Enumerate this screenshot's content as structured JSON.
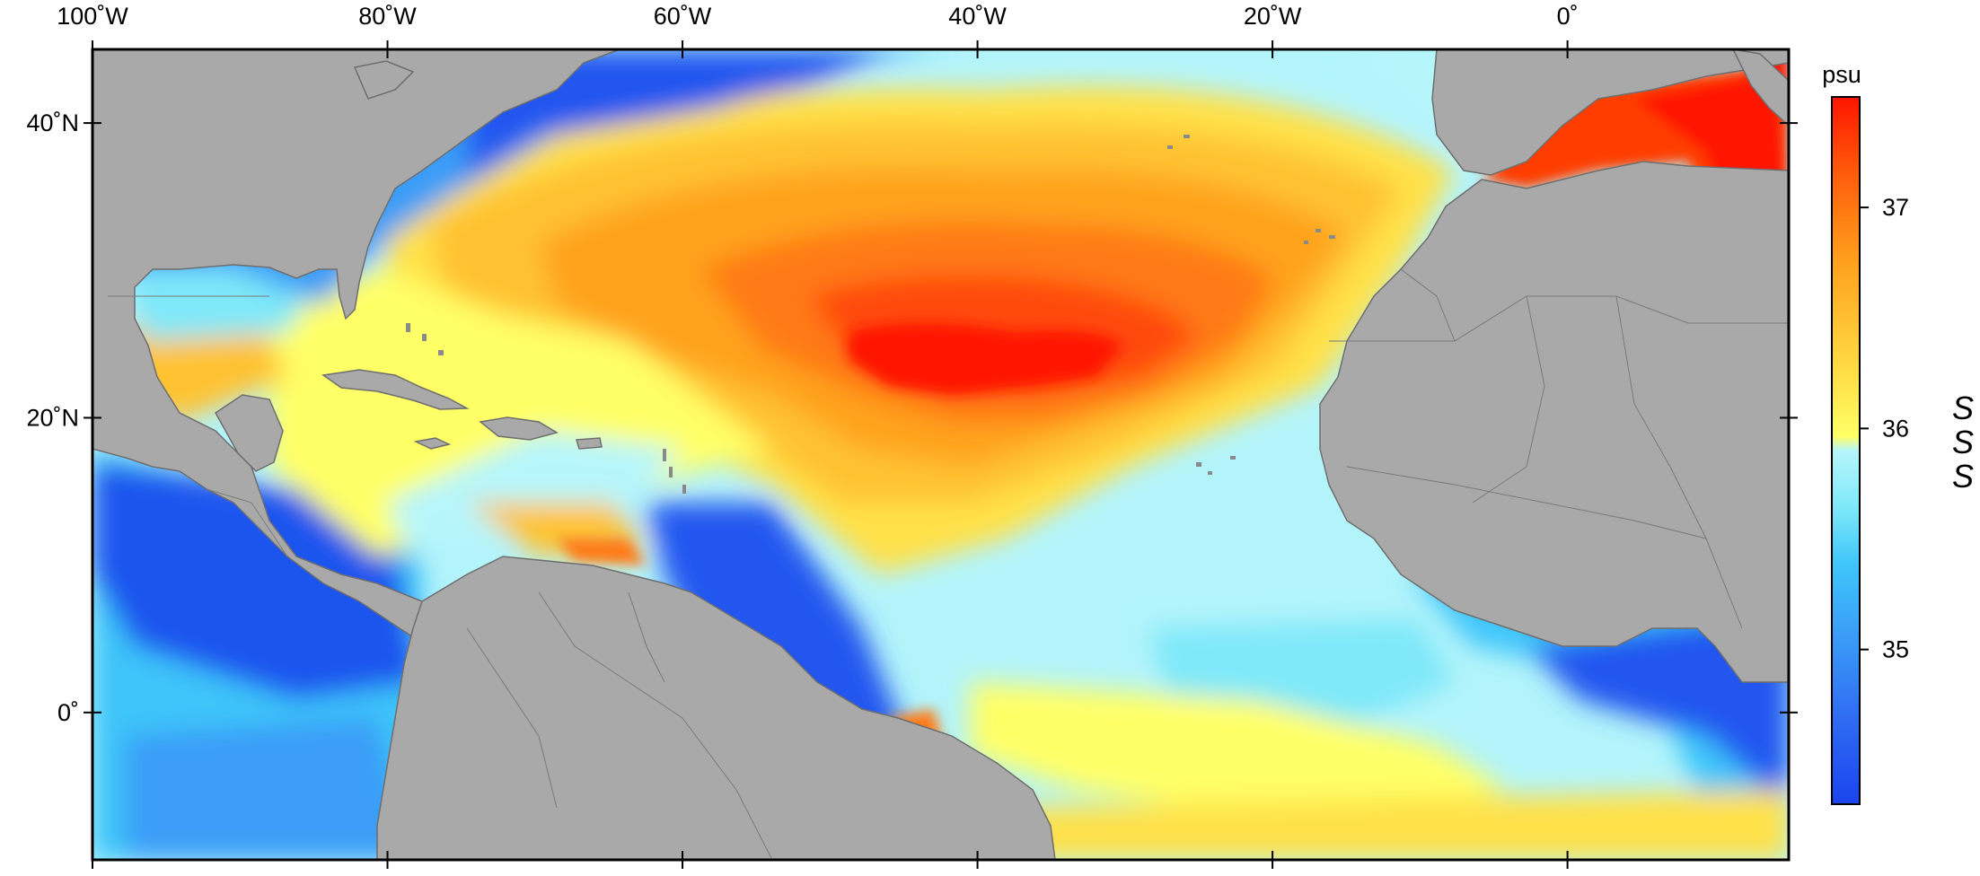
{
  "map": {
    "variable_label": "SSS",
    "units": "psu",
    "lon_ticks": [
      "100˚W",
      "80˚W",
      "60˚W",
      "40˚W",
      "20˚W",
      "0˚"
    ],
    "lat_ticks": [
      "40˚N",
      "20˚N",
      "0˚"
    ],
    "lon_values": [
      -100,
      -80,
      -60,
      -40,
      -20,
      0
    ],
    "lat_values": [
      40,
      20,
      0
    ],
    "lon_range": [
      -100,
      15
    ],
    "lat_range": [
      -10,
      45
    ],
    "land_color": "#a9a9a9",
    "land_outline_color": "#6e6e6e"
  },
  "colorbar": {
    "tick_labels": [
      "37",
      "36",
      "35"
    ],
    "tick_values": [
      37,
      36,
      35
    ],
    "range": [
      34.3,
      37.5
    ],
    "colors": [
      "#1a44ee",
      "#2f6bf2",
      "#3a9df7",
      "#3fc6fa",
      "#7fe8f9",
      "#b6f6fb",
      "#ffff66",
      "#ffe14a",
      "#ffc233",
      "#ffa31f",
      "#ff7a12",
      "#ff4a08",
      "#ff1500"
    ]
  }
}
